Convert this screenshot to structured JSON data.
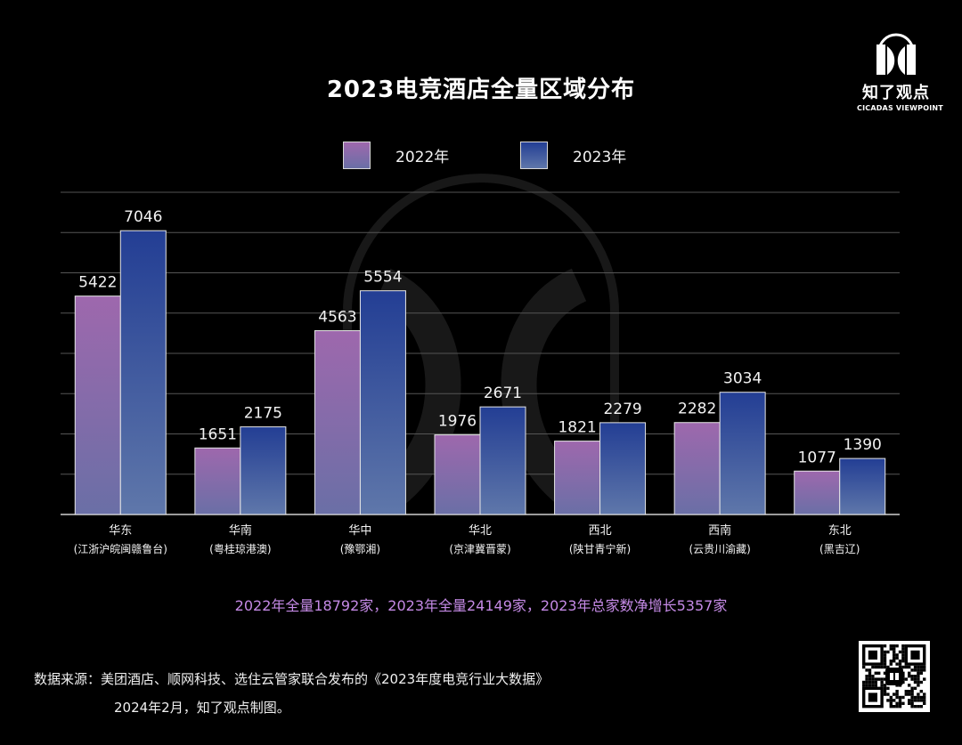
{
  "title": "2023电竞酒店全量区域分布",
  "logo": {
    "name_cn": "知了观点",
    "name_en": "CICADAS VIEWPOINT"
  },
  "legend": [
    {
      "label": "2022年",
      "color_top": "#9e68ad",
      "color_bottom": "#6a6fa6"
    },
    {
      "label": "2023年",
      "color_top": "#233e94",
      "color_bottom": "#5f77aa"
    }
  ],
  "chart_data": {
    "type": "bar",
    "title": "2023电竞酒店全量区域分布",
    "categories": [
      "华东",
      "华南",
      "华中",
      "华北",
      "西北",
      "西南",
      "东北"
    ],
    "category_sublabels": [
      "(江浙沪皖闽赣鲁台)",
      "(粤桂琼港澳)",
      "(豫鄂湘)",
      "(京津冀晋蒙)",
      "(陕甘青宁新)",
      "(云贵川渝藏)",
      "(黑吉辽)"
    ],
    "series": [
      {
        "name": "2022年",
        "values": [
          5422,
          1651,
          4563,
          1976,
          1821,
          2282,
          1077
        ]
      },
      {
        "name": "2023年",
        "values": [
          7046,
          2175,
          5554,
          2671,
          2279,
          3034,
          1390
        ]
      }
    ],
    "ylim": [
      0,
      8000
    ],
    "y_grid_step": 1000,
    "grid": true,
    "y_tick_labels_shown": false,
    "legend_position": "top-center"
  },
  "summary": "2022年全量18792家，2023年全量24149家，2023年总家数净增长5357家",
  "source_line1": "数据来源：美团酒店、顺网科技、选住云管家联合发布的《2023年度电竞行业大数据》",
  "source_line2": "2024年2月，知了观点制图。"
}
